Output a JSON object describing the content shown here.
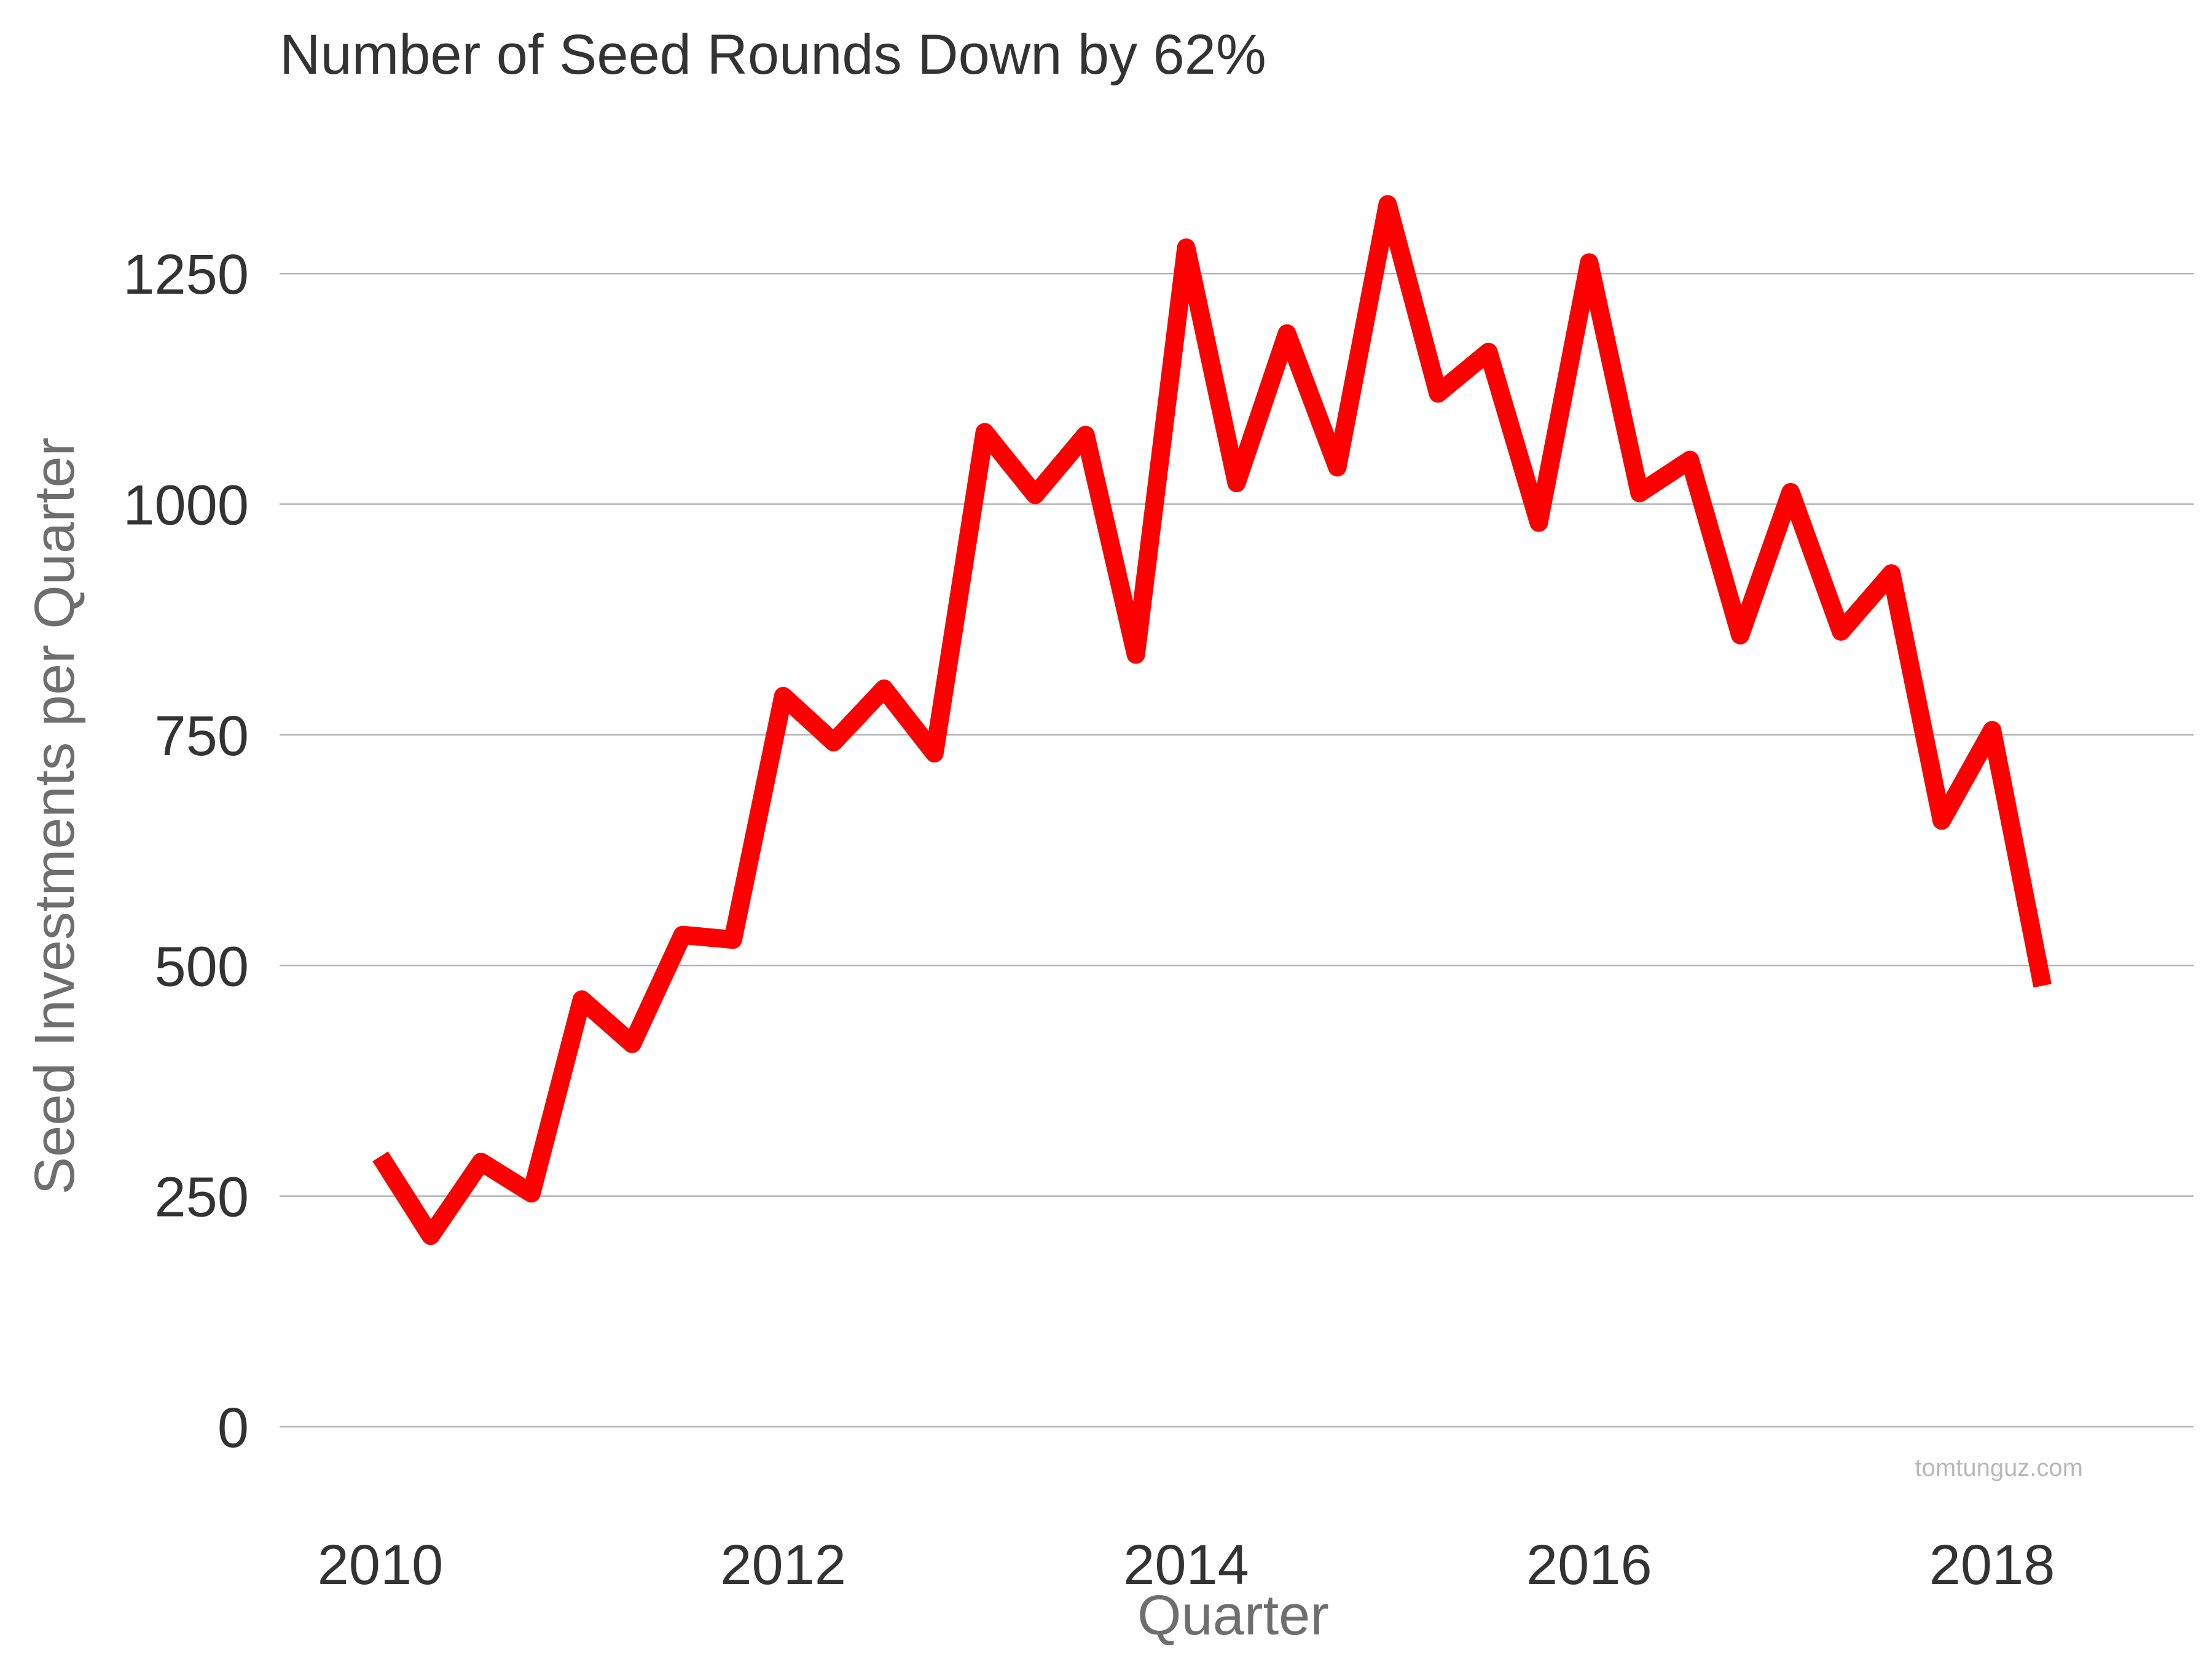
{
  "watermark": "tomtunguz.com",
  "colors": {
    "line": "#ff0000",
    "grid": "#b3b3b3",
    "text": "#333333",
    "axis_title": "#6e6e6e"
  },
  "chart_data": {
    "type": "line",
    "title": "Number of Seed Rounds Down by 62%",
    "xlabel": "Quarter",
    "ylabel": "Seed Investments per Quarter",
    "xlim": [
      2009.5,
      2019.0
    ],
    "ylim": [
      0,
      1380
    ],
    "x_ticks": [
      2010,
      2012,
      2014,
      2016,
      2018
    ],
    "y_ticks": [
      0,
      250,
      500,
      750,
      1000,
      1250
    ],
    "grid": "horizontal",
    "series": [
      {
        "color": "#ff0000",
        "x": [
          2010.0,
          2010.25,
          2010.5,
          2010.75,
          2011.0,
          2011.25,
          2011.5,
          2011.75,
          2012.0,
          2012.25,
          2012.5,
          2012.75,
          2013.0,
          2013.25,
          2013.5,
          2013.75,
          2014.0,
          2014.25,
          2014.5,
          2014.75,
          2015.0,
          2015.25,
          2015.5,
          2015.75,
          2016.0,
          2016.25,
          2016.5,
          2016.75,
          2017.0,
          2017.25,
          2017.5,
          2017.75,
          2018.0,
          2018.25
        ],
        "y": [
          293,
          207,
          287,
          253,
          463,
          415,
          533,
          528,
          792,
          742,
          800,
          730,
          1078,
          1010,
          1075,
          837,
          1278,
          1023,
          1185,
          1040,
          1325,
          1120,
          1165,
          980,
          1262,
          1012,
          1048,
          858,
          1013,
          862,
          925,
          657,
          755,
          478
        ]
      }
    ]
  }
}
